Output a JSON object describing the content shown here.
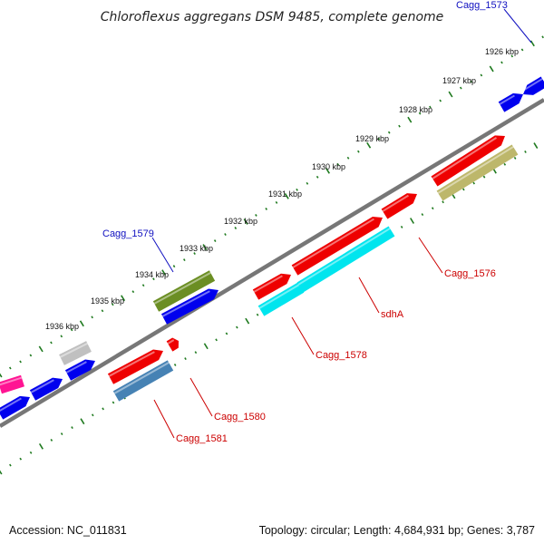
{
  "title": "Chloroflexus aggregans DSM 9485, complete genome",
  "footer": {
    "accession": "Accession: NC_011831",
    "summary": "Topology: circular; Length: 4,684,931 bp; Genes: 3,787"
  },
  "colors": {
    "backbone": "#777777",
    "ticks": "#1f7a1f",
    "label_blue": "#1010c0",
    "label_red": "#cc0000"
  },
  "scale_labels": [
    "1926 kbp",
    "1927 kbp",
    "1928 kbp",
    "1929 kbp",
    "1930 kbp",
    "1931 kbp",
    "1932 kbp",
    "1933 kbp",
    "1934 kbp",
    "1935 kbp",
    "1936 kbp"
  ],
  "gene_labels": [
    {
      "text": "Cagg_1573",
      "color": "blue"
    },
    {
      "text": "Cagg_1579",
      "color": "blue"
    },
    {
      "text": "Cagg_1576",
      "color": "red"
    },
    {
      "text": "sdhA",
      "color": "red"
    },
    {
      "text": "Cagg_1578",
      "color": "red"
    },
    {
      "text": "Cagg_1580",
      "color": "red"
    },
    {
      "text": "Cagg_1581",
      "color": "red"
    }
  ],
  "features": [
    {
      "name": "outer-gene-1",
      "color": "#0000ee"
    },
    {
      "name": "outer-gene-2",
      "color": "#0000ee"
    },
    {
      "name": "outer-gene-cagg-1579",
      "color": "#6b8e23"
    },
    {
      "name": "outer-gene-4",
      "color": "#0000ee"
    },
    {
      "name": "outer-gene-5",
      "color": "#c0c0c0"
    },
    {
      "name": "outer-gene-6",
      "color": "#0000ee"
    },
    {
      "name": "outer-gene-7",
      "color": "#0000ee"
    },
    {
      "name": "outer-gene-8",
      "color": "#ff1493"
    },
    {
      "name": "outer-gene-9",
      "color": "#0000ee"
    },
    {
      "name": "inner-gene-1",
      "color": "#ee0000"
    },
    {
      "name": "inner-gene-cagg-1576",
      "color": "#ee0000"
    },
    {
      "name": "inner-gene-sdha",
      "color": "#ee0000"
    },
    {
      "name": "inner-gene-cagg-1578",
      "color": "#ee0000"
    },
    {
      "name": "inner-gene-small",
      "color": "#ee0000"
    },
    {
      "name": "inner-gene-cagg-1580",
      "color": "#ee0000"
    },
    {
      "name": "inner2-gene-1",
      "color": "#bdb76b"
    },
    {
      "name": "inner2-gene-2",
      "color": "#00e5ee"
    },
    {
      "name": "inner2-gene-3",
      "color": "#00e5ee"
    },
    {
      "name": "inner2-gene-cagg-1581",
      "color": "#4682b4"
    }
  ]
}
